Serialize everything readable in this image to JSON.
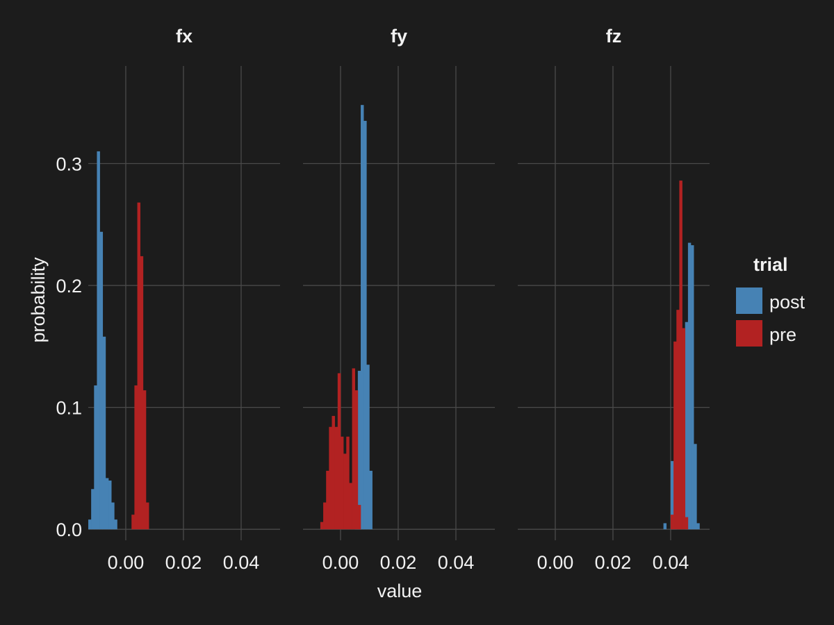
{
  "chart_data": {
    "type": "bar",
    "title": "",
    "xlabel": "value",
    "ylabel": "probability",
    "xlim": [
      -0.013,
      0.0535
    ],
    "ylim": [
      -0.009,
      0.38
    ],
    "x_ticks": [
      0.0,
      0.02,
      0.04
    ],
    "x_tick_labels": [
      "0.00",
      "0.02",
      "0.04"
    ],
    "y_ticks": [
      0.0,
      0.1,
      0.2,
      0.3
    ],
    "y_tick_labels": [
      "0.0",
      "0.1",
      "0.2",
      "0.3"
    ],
    "bin_width": 0.001,
    "grid": true,
    "legend": {
      "title": "trial",
      "placement": "right",
      "entries": [
        {
          "name": "post",
          "color": "#4682b4"
        },
        {
          "name": "pre",
          "color": "#b22222"
        }
      ]
    },
    "facets": [
      {
        "label": "fx",
        "series": [
          {
            "name": "post",
            "color": "#4682b4",
            "bins": [
              [
                -0.013,
                0.008
              ],
              [
                -0.012,
                0.033
              ],
              [
                -0.011,
                0.118
              ],
              [
                -0.01,
                0.31
              ],
              [
                -0.009,
                0.244
              ],
              [
                -0.008,
                0.158
              ],
              [
                -0.007,
                0.042
              ],
              [
                -0.006,
                0.04
              ],
              [
                -0.005,
                0.022
              ],
              [
                -0.004,
                0.008
              ]
            ]
          },
          {
            "name": "pre",
            "color": "#b22222",
            "bins": [
              [
                0.002,
                0.012
              ],
              [
                0.003,
                0.118
              ],
              [
                0.004,
                0.268
              ],
              [
                0.005,
                0.224
              ],
              [
                0.006,
                0.114
              ],
              [
                0.007,
                0.022
              ]
            ]
          }
        ]
      },
      {
        "label": "fy",
        "series": [
          {
            "name": "post",
            "color": "#4682b4",
            "bins": [
              [
                0.005,
                0.045
              ],
              [
                0.006,
                0.13
              ],
              [
                0.007,
                0.348
              ],
              [
                0.008,
                0.335
              ],
              [
                0.009,
                0.135
              ],
              [
                0.01,
                0.048
              ]
            ]
          },
          {
            "name": "pre",
            "color": "#b22222",
            "bins": [
              [
                -0.007,
                0.006
              ],
              [
                -0.006,
                0.022
              ],
              [
                -0.005,
                0.048
              ],
              [
                -0.004,
                0.084
              ],
              [
                -0.003,
                0.093
              ],
              [
                -0.002,
                0.084
              ],
              [
                -0.001,
                0.128
              ],
              [
                0.0,
                0.076
              ],
              [
                0.001,
                0.062
              ],
              [
                0.002,
                0.076
              ],
              [
                0.003,
                0.038
              ],
              [
                0.004,
                0.132
              ],
              [
                0.005,
                0.114
              ],
              [
                0.006,
                0.02
              ]
            ]
          }
        ]
      },
      {
        "label": "fz",
        "series": [
          {
            "name": "post",
            "color": "#4682b4",
            "bins": [
              [
                0.0375,
                0.005
              ],
              [
                0.04,
                0.056
              ],
              [
                0.041,
                0.024
              ],
              [
                0.045,
                0.17
              ],
              [
                0.046,
                0.235
              ],
              [
                0.047,
                0.233
              ],
              [
                0.048,
                0.07
              ],
              [
                0.049,
                0.005
              ]
            ]
          },
          {
            "name": "pre",
            "color": "#b22222",
            "bins": [
              [
                0.04,
                0.012
              ],
              [
                0.041,
                0.154
              ],
              [
                0.042,
                0.18
              ],
              [
                0.043,
                0.286
              ],
              [
                0.044,
                0.165
              ],
              [
                0.045,
                0.01
              ]
            ]
          }
        ]
      }
    ]
  }
}
